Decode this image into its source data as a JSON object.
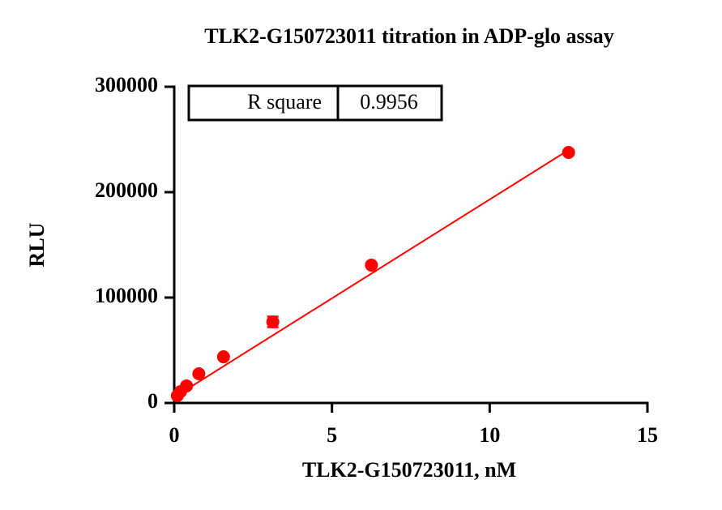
{
  "chart_data": {
    "type": "scatter",
    "title": "TLK2-G150723011 titration in  ADP-glo assay",
    "xlabel": "TLK2-G150723011, nM",
    "ylabel": "RLU",
    "xlim": [
      0,
      15
    ],
    "xticks": [
      0,
      5,
      10,
      15
    ],
    "ylim": [
      0,
      300000
    ],
    "yticks": [
      0,
      100000,
      200000,
      300000
    ],
    "grid": false,
    "series": [
      {
        "name": "TLK2-G150723011",
        "color": "#ff0000",
        "x": [
          12.5,
          6.25,
          3.125,
          1.5625,
          0.78,
          0.39,
          0.2,
          0.1
        ],
        "values": [
          237700,
          130800,
          76900,
          43800,
          27700,
          16200,
          10800,
          6900
        ],
        "errors": [
          0,
          0,
          5000,
          0,
          0,
          0,
          0,
          0
        ]
      }
    ],
    "fit": {
      "color": "#ff0000",
      "x": [
        0,
        12.5
      ],
      "y": [
        5500,
        240000
      ]
    },
    "annotation_table": {
      "label": "R square",
      "value": 0.9956
    }
  }
}
